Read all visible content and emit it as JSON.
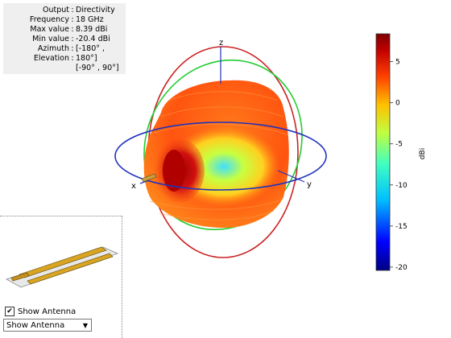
{
  "info": [
    {
      "key": "Output",
      "value": "Directivity"
    },
    {
      "key": "Frequency",
      "value": "18 GHz"
    },
    {
      "key": "Max value",
      "value": "8.39 dBi"
    },
    {
      "key": "Min value",
      "value": "-20.4 dBi"
    },
    {
      "key": "Azimuth",
      "value": "[-180° ,"
    },
    {
      "key": "Elevation",
      "value": "180°]"
    },
    {
      "key": "",
      "value": "[-90° , 90°]"
    }
  ],
  "axes": {
    "x": "x",
    "y": "y",
    "z": "z"
  },
  "chart_data": {
    "type": "heatmap",
    "title": "",
    "colorbar": {
      "label": "dBi",
      "range": [
        -20.4,
        8.39
      ],
      "ticks": [
        5,
        0,
        -5,
        -10,
        -15,
        -20
      ],
      "colors": [
        "#000080",
        "#0000ff",
        "#00c0ff",
        "#40ffc0",
        "#c0ff40",
        "#ffc000",
        "#ff4000",
        "#c00000",
        "#800000"
      ]
    }
  },
  "controls": {
    "show_antenna_label": "Show Antenna",
    "show_antenna_checked_mark": "✔",
    "view_select_value": "Show Antenna",
    "dropdown_arrow": "▼"
  }
}
